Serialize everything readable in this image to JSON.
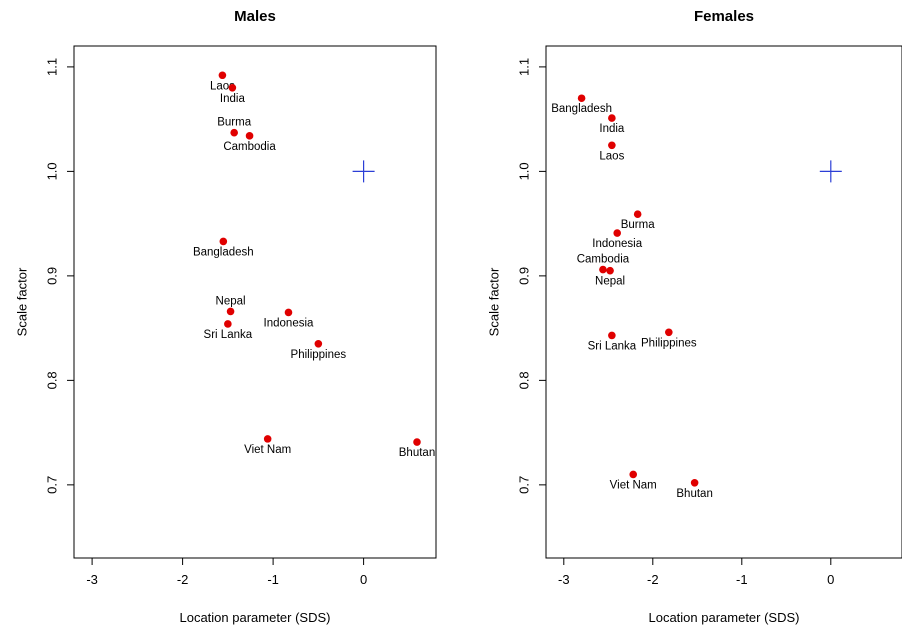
{
  "chart_data": [
    {
      "type": "scatter",
      "title": "Males",
      "xlabel": "Location parameter (SDS)",
      "ylabel": "Scale factor",
      "xlim": [
        -3.2,
        0.8
      ],
      "ylim": [
        0.63,
        1.12
      ],
      "xticks": [
        "-3",
        "-2",
        "-1",
        "0"
      ],
      "yticks": [
        "0.7",
        "0.8",
        "0.9",
        "1.0",
        "1.1"
      ],
      "grid": false,
      "point_color": "#e00000",
      "reference_color": "#2b3ed6",
      "reference": {
        "x": 0,
        "y": 1.0
      },
      "points": [
        {
          "label": "Laos",
          "x": -1.56,
          "y": 1.092,
          "pos": "below"
        },
        {
          "label": "India",
          "x": -1.45,
          "y": 1.08,
          "pos": "below"
        },
        {
          "label": "Burma",
          "x": -1.43,
          "y": 1.037,
          "pos": "above"
        },
        {
          "label": "Cambodia",
          "x": -1.26,
          "y": 1.034,
          "pos": "below"
        },
        {
          "label": "Bangladesh",
          "x": -1.55,
          "y": 0.933,
          "pos": "below"
        },
        {
          "label": "Nepal",
          "x": -1.47,
          "y": 0.866,
          "pos": "above"
        },
        {
          "label": "Sri Lanka",
          "x": -1.5,
          "y": 0.854,
          "pos": "below"
        },
        {
          "label": "Indonesia",
          "x": -0.83,
          "y": 0.865,
          "pos": "below"
        },
        {
          "label": "Philippines",
          "x": -0.5,
          "y": 0.835,
          "pos": "below"
        },
        {
          "label": "Viet Nam",
          "x": -1.06,
          "y": 0.744,
          "pos": "below"
        },
        {
          "label": "Bhutan",
          "x": 0.59,
          "y": 0.741,
          "pos": "below"
        }
      ]
    },
    {
      "type": "scatter",
      "title": "Females",
      "xlabel": "Location parameter (SDS)",
      "ylabel": "Scale factor",
      "xlim": [
        -3.2,
        0.8
      ],
      "ylim": [
        0.63,
        1.12
      ],
      "xticks": [
        "-3",
        "-2",
        "-1",
        "0"
      ],
      "yticks": [
        "0.7",
        "0.8",
        "0.9",
        "1.0",
        "1.1"
      ],
      "grid": false,
      "point_color": "#e00000",
      "reference_color": "#2b3ed6",
      "reference": {
        "x": 0,
        "y": 1.0
      },
      "points": [
        {
          "label": "Bangladesh",
          "x": -2.8,
          "y": 1.07,
          "pos": "below"
        },
        {
          "label": "India",
          "x": -2.46,
          "y": 1.051,
          "pos": "below"
        },
        {
          "label": "Laos",
          "x": -2.46,
          "y": 1.025,
          "pos": "below"
        },
        {
          "label": "Burma",
          "x": -2.17,
          "y": 0.959,
          "pos": "below"
        },
        {
          "label": "Indonesia",
          "x": -2.4,
          "y": 0.941,
          "pos": "below"
        },
        {
          "label": "Cambodia",
          "x": -2.56,
          "y": 0.906,
          "pos": "above"
        },
        {
          "label": "Nepal",
          "x": -2.48,
          "y": 0.905,
          "pos": "below"
        },
        {
          "label": "Sri Lanka",
          "x": -2.46,
          "y": 0.843,
          "pos": "below"
        },
        {
          "label": "Philippines",
          "x": -1.82,
          "y": 0.846,
          "pos": "below"
        },
        {
          "label": "Viet Nam",
          "x": -2.22,
          "y": 0.71,
          "pos": "below"
        },
        {
          "label": "Bhutan",
          "x": -1.53,
          "y": 0.702,
          "pos": "below"
        }
      ]
    }
  ]
}
